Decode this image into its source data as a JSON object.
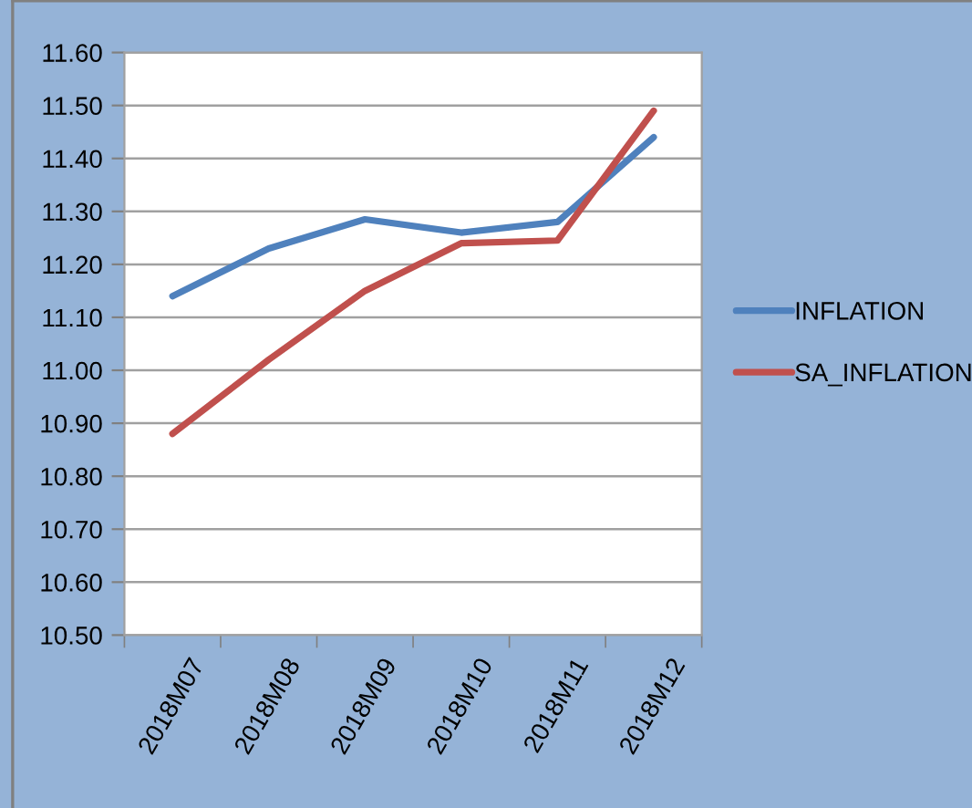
{
  "chart_data": {
    "type": "line",
    "categories": [
      "2018M07",
      "2018M08",
      "2018M09",
      "2018M10",
      "2018M11",
      "2018M12"
    ],
    "series": [
      {
        "name": "INFLATION",
        "color": "#4f81bd",
        "values": [
          11.14,
          11.23,
          11.285,
          11.26,
          11.28,
          11.44
        ]
      },
      {
        "name": "SA_INFLATION",
        "color": "#c0504d",
        "values": [
          10.88,
          11.02,
          11.15,
          11.24,
          11.245,
          11.49
        ]
      }
    ],
    "ylim": [
      10.5,
      11.6
    ],
    "yticks": [
      {
        "value": 10.5,
        "label": "10.50"
      },
      {
        "value": 10.6,
        "label": "10.60"
      },
      {
        "value": 10.7,
        "label": "10.70"
      },
      {
        "value": 10.8,
        "label": "10.80"
      },
      {
        "value": 10.9,
        "label": "10.90"
      },
      {
        "value": 11.0,
        "label": "11.00"
      },
      {
        "value": 11.1,
        "label": "11.10"
      },
      {
        "value": 11.2,
        "label": "11.20"
      },
      {
        "value": 11.3,
        "label": "11.30"
      },
      {
        "value": 11.4,
        "label": "11.40"
      },
      {
        "value": 11.5,
        "label": "11.50"
      },
      {
        "value": 11.6,
        "label": "11.60"
      }
    ],
    "grid": "y",
    "legend": "right",
    "marker": "none",
    "line_style": "solid"
  }
}
